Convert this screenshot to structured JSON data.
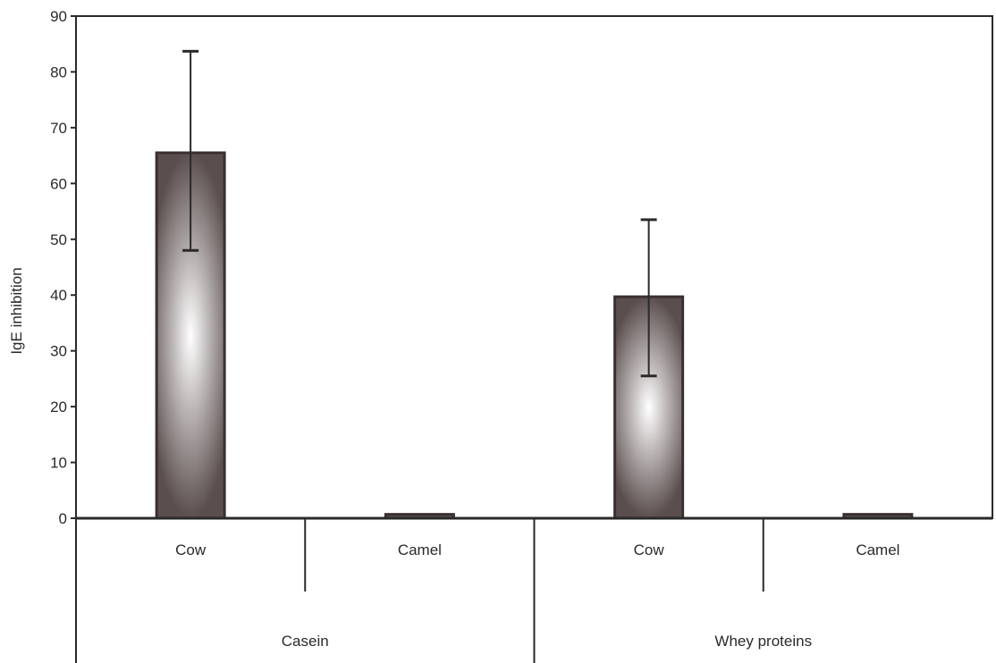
{
  "chart_data": {
    "type": "bar",
    "title": "",
    "ylabel": "IgE inhibition",
    "ylim": [
      0,
      90
    ],
    "yticks": [
      0,
      10,
      20,
      30,
      40,
      50,
      60,
      70,
      80,
      90
    ],
    "groups": [
      {
        "label": "Casein",
        "categories": [
          "Cow",
          "Camel"
        ]
      },
      {
        "label": "Whey proteins",
        "categories": [
          "Cow",
          "Camel"
        ]
      }
    ],
    "categories": [
      "Cow",
      "Camel",
      "Cow",
      "Camel"
    ],
    "values": [
      65.5,
      0.7,
      39.7,
      0.7
    ],
    "error_low": [
      48,
      null,
      25.5,
      null
    ],
    "error_high": [
      83.7,
      null,
      53.5,
      null
    ],
    "grid": false,
    "legend": "none"
  },
  "colors": {
    "bar_edge": "#3a3030",
    "bar_dark": "#5b4e4e",
    "bar_light": "#ffffff",
    "axis": "#2a2a2a"
  }
}
